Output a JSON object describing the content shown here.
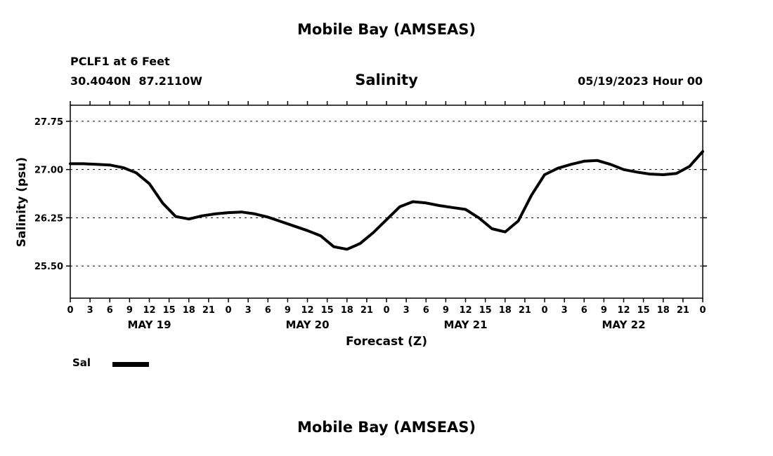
{
  "page": {
    "top_title": "Mobile Bay (AMSEAS)",
    "bottom_title": "Mobile Bay (AMSEAS)"
  },
  "header": {
    "station": "PCLF1 at 6 Feet",
    "coordinates": "30.4040N  87.2110W",
    "plot_title": "Salinity",
    "run_time": "05/19/2023 Hour 00"
  },
  "legend": {
    "label": "Sal"
  },
  "chart_data": {
    "type": "line",
    "title": "Salinity",
    "xlabel": "Forecast (Z)",
    "ylabel": "Salinity (psu)",
    "ylim": [
      25.0,
      28.0
    ],
    "y_ticks": [
      25.5,
      26.25,
      27.0,
      27.75
    ],
    "x_range_hours": [
      0,
      96
    ],
    "x_tick_interval_hours": 3,
    "x_tick_label_style": "hour-of-day-0-to-21",
    "day_labels": [
      "MAY 19",
      "MAY 20",
      "MAY 21",
      "MAY 22"
    ],
    "grid": "horizontal-dashed-only",
    "legend_position": "below-left",
    "line_color": "#000000",
    "series": [
      {
        "name": "Sal",
        "x": [
          0,
          2,
          4,
          6,
          8,
          10,
          12,
          14,
          16,
          18,
          20,
          22,
          24,
          26,
          28,
          30,
          32,
          34,
          36,
          38,
          40,
          42,
          44,
          46,
          48,
          50,
          52,
          54,
          56,
          58,
          60,
          62,
          64,
          66,
          68,
          70,
          72,
          74,
          76,
          78,
          80,
          82,
          84,
          86,
          88,
          90,
          92,
          94,
          96
        ],
        "values": [
          27.09,
          27.09,
          27.08,
          27.07,
          27.03,
          26.95,
          26.78,
          26.48,
          26.27,
          26.23,
          26.28,
          26.31,
          26.33,
          26.34,
          26.31,
          26.26,
          26.19,
          26.12,
          26.05,
          25.97,
          25.8,
          25.76,
          25.85,
          26.02,
          26.22,
          26.42,
          26.5,
          26.48,
          26.44,
          26.41,
          26.38,
          26.25,
          26.08,
          26.03,
          26.2,
          26.6,
          26.92,
          27.02,
          27.08,
          27.13,
          27.14,
          27.08,
          27.0,
          26.96,
          26.93,
          26.92,
          26.94,
          27.05,
          27.28
        ]
      }
    ]
  }
}
